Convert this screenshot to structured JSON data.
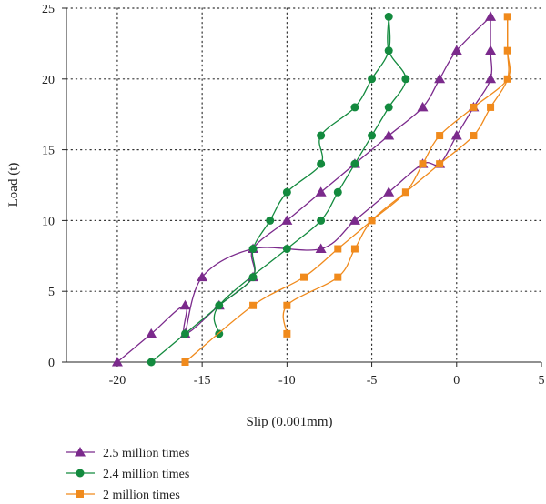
{
  "chart_data": {
    "type": "scatter",
    "xlabel": "Slip (0.001mm)",
    "ylabel": "Load (t)",
    "xlim": [
      -23,
      5
    ],
    "ylim": [
      0,
      25
    ],
    "xticks": [
      -20,
      -15,
      -10,
      -5,
      0,
      5
    ],
    "yticks": [
      0,
      5,
      10,
      15,
      20,
      25
    ],
    "grid": true,
    "legend_position": "bottom-left",
    "series": [
      {
        "name": "2.5 million times",
        "color": "#7b2a8c",
        "marker": "triangle",
        "curves": [
          [
            [
              -20,
              0
            ],
            [
              -18,
              2
            ],
            [
              -16,
              4
            ],
            [
              -16,
              2
            ],
            [
              -14,
              4
            ],
            [
              -12,
              6
            ],
            [
              -12,
              8
            ],
            [
              -10,
              10
            ],
            [
              -8,
              12
            ],
            [
              -6,
              14
            ],
            [
              -4,
              16
            ],
            [
              -2,
              18
            ],
            [
              -1,
              20
            ],
            [
              0,
              22
            ],
            [
              2,
              24.4
            ]
          ],
          [
            [
              -16,
              2
            ],
            [
              -15,
              6
            ],
            [
              -12,
              8
            ],
            [
              -8,
              8
            ],
            [
              -6,
              10
            ],
            [
              -4,
              12
            ],
            [
              -2,
              14
            ],
            [
              -1,
              14
            ],
            [
              0,
              16
            ],
            [
              1,
              18
            ],
            [
              2,
              20
            ],
            [
              2,
              22
            ],
            [
              2,
              24.4
            ]
          ]
        ]
      },
      {
        "name": "2.4 million times",
        "color": "#138a3e",
        "marker": "circle",
        "curves": [
          [
            [
              -18,
              0
            ],
            [
              -16,
              2
            ],
            [
              -14,
              4
            ],
            [
              -12,
              6
            ],
            [
              -12,
              8
            ],
            [
              -11,
              10
            ],
            [
              -10,
              12
            ],
            [
              -8,
              14
            ],
            [
              -8,
              16
            ],
            [
              -6,
              18
            ],
            [
              -5,
              20
            ],
            [
              -4,
              22
            ],
            [
              -4,
              24.4
            ]
          ],
          [
            [
              -14,
              2
            ],
            [
              -14,
              4
            ],
            [
              -10,
              8
            ],
            [
              -8,
              10
            ],
            [
              -7,
              12
            ],
            [
              -6,
              14
            ],
            [
              -5,
              16
            ],
            [
              -4,
              18
            ],
            [
              -3,
              20
            ],
            [
              -4,
              22
            ],
            [
              -4,
              24.4
            ]
          ]
        ]
      },
      {
        "name": "2 million times",
        "color": "#f08a1c",
        "marker": "square",
        "curves": [
          [
            [
              -16,
              0
            ],
            [
              -12,
              4
            ],
            [
              -9,
              6
            ],
            [
              -7,
              8
            ],
            [
              -5,
              10
            ],
            [
              -3,
              12
            ],
            [
              -2,
              14
            ],
            [
              -1,
              16
            ],
            [
              1,
              18
            ],
            [
              3,
              20
            ],
            [
              3,
              22
            ],
            [
              3,
              24.4
            ]
          ],
          [
            [
              -10,
              2
            ],
            [
              -10,
              4
            ],
            [
              -7,
              6
            ],
            [
              -6,
              8
            ],
            [
              -5,
              10
            ],
            [
              -3,
              12
            ],
            [
              -1,
              14
            ],
            [
              1,
              16
            ],
            [
              2,
              18
            ],
            [
              3,
              20
            ],
            [
              3,
              22
            ],
            [
              3,
              24.4
            ]
          ]
        ]
      }
    ]
  }
}
